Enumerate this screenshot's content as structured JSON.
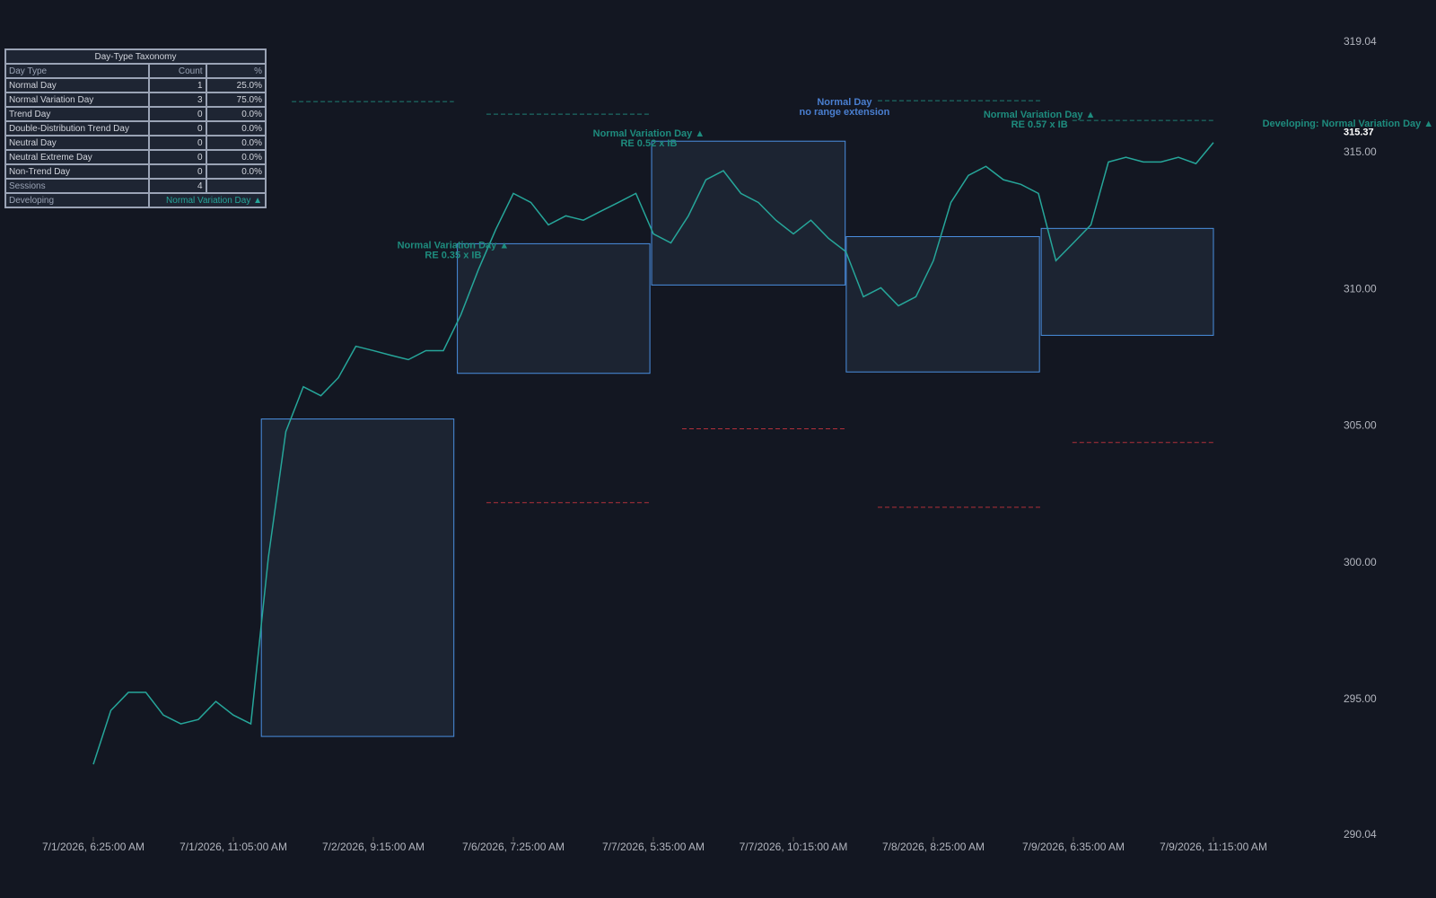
{
  "chart_data": {
    "type": "line",
    "x": [
      0,
      5,
      10,
      15,
      20,
      25,
      30,
      35,
      40,
      45,
      50,
      55,
      60,
      65,
      70,
      75,
      80,
      85,
      90,
      95,
      100,
      105,
      110,
      115,
      120,
      125,
      130,
      135,
      140,
      145,
      150,
      155,
      160,
      165,
      170,
      175,
      180,
      185,
      190,
      195,
      200,
      205,
      210,
      215,
      220,
      225,
      230,
      235,
      240,
      245,
      250,
      255,
      260,
      265,
      270,
      275,
      280,
      285,
      290,
      295,
      300,
      305,
      310,
      315,
      320
    ],
    "series": [
      {
        "color": "#26a69a",
        "values": [
          292.63,
          294.6,
          295.26,
          295.26,
          294.43,
          294.11,
          294.27,
          294.93,
          294.43,
          294.11,
          300.19,
          304.8,
          306.44,
          306.11,
          306.77,
          307.92,
          307.76,
          307.59,
          307.43,
          307.76,
          307.76,
          309.07,
          310.72,
          312.2,
          313.51,
          313.18,
          312.36,
          312.69,
          312.53,
          312.86,
          313.18,
          313.51,
          312.03,
          311.7,
          312.69,
          314.01,
          314.34,
          313.51,
          313.18,
          312.53,
          312.03,
          312.53,
          311.87,
          311.38,
          309.73,
          310.06,
          309.4,
          309.73,
          311.05,
          313.18,
          314.17,
          314.5,
          314.01,
          313.84,
          313.51,
          311.05,
          311.7,
          312.36,
          314.66,
          314.83,
          314.66,
          314.66,
          314.83,
          314.6,
          315.37
        ]
      }
    ],
    "xlim": [
      0,
      320
    ],
    "xticks": [
      {
        "value": 0,
        "label": "7/1/2026, 6:25:00 AM"
      },
      {
        "value": 40,
        "label": "7/1/2026, 11:05:00 AM"
      },
      {
        "value": 80,
        "label": "7/2/2026, 9:15:00 AM"
      },
      {
        "value": 120,
        "label": "7/6/2026, 7:25:00 AM"
      },
      {
        "value": 160,
        "label": "7/7/2026, 5:35:00 AM"
      },
      {
        "value": 200,
        "label": "7/7/2026, 10:15:00 AM"
      },
      {
        "value": 240,
        "label": "7/8/2026, 8:25:00 AM"
      },
      {
        "value": 280,
        "label": "7/9/2026, 6:35:00 AM"
      },
      {
        "value": 320,
        "label": "7/9/2026, 11:15:00 AM"
      }
    ],
    "ylim": [
      290.04,
      319.04
    ],
    "yticks": [
      290.04,
      {
        "value": 295,
        "label": "295.00"
      },
      {
        "value": 300,
        "label": "300.00"
      },
      {
        "value": 305,
        "label": "305.00"
      },
      {
        "value": 310,
        "label": "310.00"
      },
      {
        "value": 315,
        "label": "315.00"
      },
      319.04
    ],
    "last_price": 315.37,
    "sessions": [
      {
        "x0": 48,
        "x1": 103,
        "high": 305.26,
        "low": 293.65
      },
      {
        "x0": 104,
        "x1": 159,
        "high": 311.67,
        "low": 306.93
      },
      {
        "x0": 159.5,
        "x1": 214.8,
        "high": 315.42,
        "low": 310.16
      },
      {
        "x0": 215.1,
        "x1": 270.3,
        "high": 311.93,
        "low": 306.98
      },
      {
        "x0": 270.8,
        "x1": 320,
        "high": 312.23,
        "low": 308.32
      }
    ],
    "levels": [
      {
        "x0": 56.7,
        "x1": 103,
        "value": 316.87,
        "color": "#1e7f74"
      },
      {
        "x0": 112.3,
        "x1": 158.7,
        "value": 316.41,
        "color": "#1e7f74"
      },
      {
        "x0": 224.1,
        "x1": 270.5,
        "value": 316.9,
        "color": "#1e7f74"
      },
      {
        "x0": 279.7,
        "x1": 320.5,
        "value": 316.18,
        "color": "#1e7f74"
      },
      {
        "x0": 168.2,
        "x1": 214.6,
        "value": 304.9,
        "color": "#b2303a"
      },
      {
        "x0": 112.3,
        "x1": 158.7,
        "value": 302.2,
        "color": "#b2303a"
      },
      {
        "x0": 224.1,
        "x1": 270.5,
        "value": 302.03,
        "color": "#b2303a"
      },
      {
        "x0": 279.7,
        "x1": 320.5,
        "value": 304.4,
        "color": "#b2303a"
      }
    ],
    "annotations": [
      {
        "x": 102.8,
        "y": 311.6,
        "color": "#1e8c7e",
        "lines": [
          "Normal Variation Day ▲",
          "RE 0.35 x IB"
        ]
      },
      {
        "x": 158.7,
        "y": 315.69,
        "color": "#1e8c7e",
        "lines": [
          "Normal Variation Day ▲",
          "RE 0.52 x IB"
        ]
      },
      {
        "x": 214.6,
        "y": 316.84,
        "color": "#4a7fd0",
        "lines": [
          "Normal Day",
          "no range extension"
        ]
      },
      {
        "x": 270.3,
        "y": 316.38,
        "color": "#1e8c7e",
        "lines": [
          "Normal Variation Day ▲",
          "RE 0.57 x IB"
        ]
      }
    ],
    "developing": {
      "x": 334,
      "y": 316.05,
      "color": "#1e8c7e",
      "label": "Developing: Normal Variation Day ▲"
    }
  },
  "table": {
    "title": "Day-Type Taxonomy",
    "columns": [
      "Day Type",
      "Count",
      "%"
    ],
    "rows": [
      [
        "Normal Day",
        1,
        "25.0%"
      ],
      [
        "Normal Variation Day",
        3,
        "75.0%"
      ],
      [
        "Trend Day",
        0,
        "0.0%"
      ],
      [
        "Double-Distribution Trend Day",
        0,
        "0.0%"
      ],
      [
        "Neutral Day",
        0,
        "0.0%"
      ],
      [
        "Neutral Extreme Day",
        0,
        "0.0%"
      ],
      [
        "Non-Trend Day",
        0,
        "0.0%"
      ],
      [
        "Sessions",
        4
      ],
      [
        "Developing",
        "Normal Variation Day ▲"
      ]
    ]
  }
}
